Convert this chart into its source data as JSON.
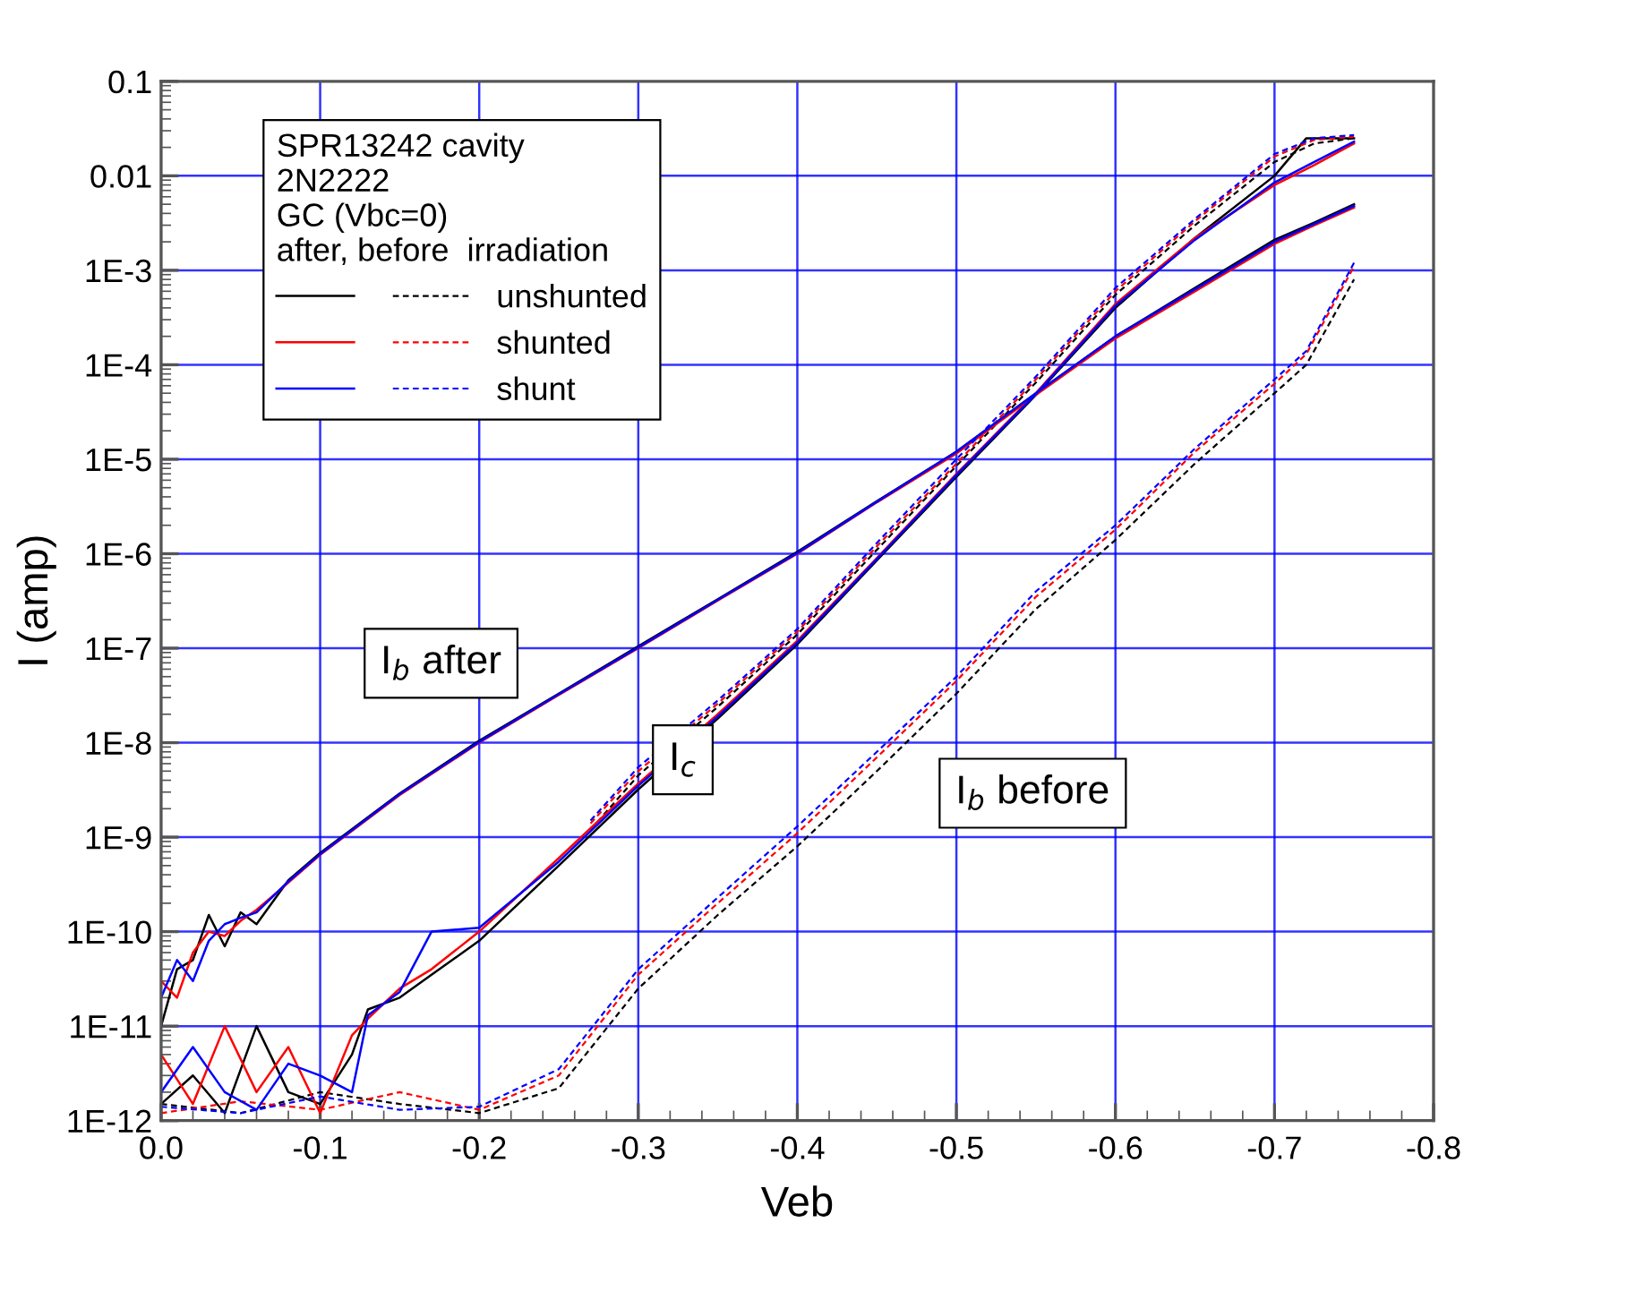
{
  "chart_data": {
    "type": "line",
    "xlabel": "Veb",
    "ylabel": "I (amp)",
    "log": "y",
    "xlim": [
      0,
      -0.8
    ],
    "ylim": [
      1e-12,
      0.1
    ],
    "xticks": [
      {
        "value": 0,
        "label": "0.0"
      },
      -0.1,
      -0.2,
      -0.3,
      -0.4,
      -0.5,
      -0.6,
      -0.7,
      -0.8
    ],
    "yticks": [
      {
        "value": 1e-12,
        "label": "1E-12"
      },
      {
        "value": 1e-11,
        "label": "1E-11"
      },
      {
        "value": 1e-10,
        "label": "1E-10"
      },
      {
        "value": 1e-09,
        "label": "1E-9"
      },
      {
        "value": 1e-08,
        "label": "1E-8"
      },
      {
        "value": 1e-07,
        "label": "1E-7"
      },
      {
        "value": 1e-06,
        "label": "1E-6"
      },
      {
        "value": 1e-05,
        "label": "1E-5"
      },
      {
        "value": 0.0001,
        "label": "1E-4"
      },
      {
        "value": 0.001,
        "label": "1E-3"
      },
      0.01,
      0.1
    ],
    "grid": true,
    "legend": "top left",
    "legend_title": "SPR13242 cavity\n2N2222\nGC (Vbc=0)\nafter, before  irradiation",
    "annotations": [
      "I$_{b}$ after",
      {
        "text": "I$_{c}$",
        "x": -0.328,
        "y": 6.6e-09
      },
      "I$_{b}$ before"
    ],
    "series": [
      {
        "name": "unshunted",
        "color": "#000000",
        "line_style": "solid",
        "x": [
          0,
          -0.01,
          -0.02,
          -0.03,
          -0.04,
          -0.05,
          -0.06,
          -0.08,
          -0.1,
          -0.15,
          -0.2,
          -0.25,
          -0.3,
          -0.35,
          -0.4,
          -0.45,
          -0.5,
          -0.55,
          -0.6,
          -0.65,
          -0.7,
          -0.725,
          -0.75
        ],
        "values": [
          1e-11,
          4e-11,
          5e-11,
          1.5e-10,
          7e-11,
          1.6e-10,
          1.2e-10,
          3.5e-10,
          6.8e-10,
          2.9e-09,
          1.05e-08,
          3.3e-08,
          1.05e-07,
          3.3e-07,
          1.05e-06,
          3.6e-06,
          1.2e-05,
          5e-05,
          0.0002,
          0.00065,
          0.0021,
          0.0032,
          0.005
        ]
      },
      {
        "color": "#000000",
        "line_style": "solid",
        "x": [
          0,
          -0.02,
          -0.04,
          -0.06,
          -0.08,
          -0.1,
          -0.12,
          -0.13,
          -0.15,
          -0.17,
          -0.2,
          -0.25,
          -0.3,
          -0.35,
          -0.4,
          -0.45,
          -0.5,
          -0.55,
          -0.6,
          -0.65,
          -0.7,
          -0.72,
          -0.75
        ],
        "values": [
          1.5e-12,
          3e-12,
          1.2e-12,
          1e-11,
          2e-12,
          1.5e-12,
          5e-12,
          1.5e-11,
          2e-11,
          3.5e-11,
          8e-11,
          5e-10,
          3.2e-09,
          1.8e-08,
          1.1e-07,
          8.5e-07,
          6.5e-06,
          4.8e-05,
          0.0004,
          0.0022,
          0.01,
          0.025,
          0.025
        ]
      },
      {
        "color": "#000000",
        "line_style": "dashed",
        "x": [
          0,
          -0.05,
          -0.1,
          -0.15,
          -0.2,
          -0.25,
          -0.3,
          -0.35,
          -0.4,
          -0.45,
          -0.5,
          -0.55,
          -0.6,
          -0.65,
          -0.7,
          -0.72,
          -0.75
        ],
        "values": [
          1.5e-12,
          1.2e-12,
          2e-12,
          1.5e-12,
          1.2e-12,
          2.2e-12,
          2.5e-11,
          1.5e-10,
          8e-10,
          5e-09,
          3.3e-08,
          2.6e-07,
          1.4e-06,
          9e-06,
          5e-05,
          0.0001,
          0.0008
        ]
      },
      {
        "color": "#000000",
        "line_style": "dashed",
        "x": [
          -0.27,
          -0.3,
          -0.35,
          -0.4,
          -0.45,
          -0.5,
          -0.55,
          -0.6,
          -0.65,
          -0.7,
          -0.725,
          -0.75
        ],
        "values": [
          1.2e-09,
          4.5e-09,
          2.4e-08,
          1.4e-07,
          1.1e-06,
          8.5e-06,
          6.5e-05,
          0.00055,
          0.003,
          0.014,
          0.022,
          0.025
        ]
      },
      {
        "name": "shunted",
        "color": "#ff0000",
        "line_style": "solid",
        "x": [
          0,
          -0.01,
          -0.02,
          -0.03,
          -0.04,
          -0.05,
          -0.06,
          -0.08,
          -0.1,
          -0.15,
          -0.2,
          -0.25,
          -0.3,
          -0.35,
          -0.4,
          -0.45,
          -0.5,
          -0.55,
          -0.6,
          -0.65,
          -0.7,
          -0.725,
          -0.75
        ],
        "values": [
          3e-11,
          2e-11,
          6e-11,
          1e-10,
          9e-11,
          1.3e-10,
          1.7e-10,
          3.3e-10,
          6.5e-10,
          2.8e-09,
          1e-08,
          3.2e-08,
          1e-07,
          3.2e-07,
          1e-06,
          3.5e-06,
          1.15e-05,
          4.8e-05,
          0.00019,
          0.0006,
          0.0019,
          0.003,
          0.0046
        ]
      },
      {
        "color": "#ff0000",
        "line_style": "solid",
        "x": [
          0,
          -0.02,
          -0.04,
          -0.06,
          -0.08,
          -0.1,
          -0.12,
          -0.13,
          -0.15,
          -0.17,
          -0.2,
          -0.25,
          -0.3,
          -0.35,
          -0.4,
          -0.45,
          -0.5,
          -0.55,
          -0.6,
          -0.65,
          -0.7,
          -0.725,
          -0.75
        ],
        "values": [
          5e-12,
          1.5e-12,
          1e-11,
          2e-12,
          6e-12,
          1.2e-12,
          8e-12,
          1.2e-11,
          2.5e-11,
          4e-11,
          1e-10,
          6e-10,
          3.7e-09,
          2e-08,
          1.2e-07,
          9e-07,
          7e-06,
          5e-05,
          0.00044,
          0.0022,
          0.008,
          0.013,
          0.022
        ]
      },
      {
        "color": "#ff0000",
        "line_style": "dashed",
        "x": [
          0,
          -0.05,
          -0.1,
          -0.15,
          -0.2,
          -0.25,
          -0.3,
          -0.35,
          -0.4,
          -0.45,
          -0.5,
          -0.55,
          -0.6,
          -0.65,
          -0.7,
          -0.72,
          -0.75
        ],
        "values": [
          1.2e-12,
          1.6e-12,
          1.3e-12,
          2e-12,
          1.3e-12,
          3e-12,
          3.5e-11,
          2e-10,
          1.1e-09,
          7e-09,
          4.5e-08,
          3.5e-07,
          1.8e-06,
          1.2e-05,
          6.3e-05,
          0.00013,
          0.0011
        ]
      },
      {
        "color": "#ff0000",
        "line_style": "dashed",
        "x": [
          -0.27,
          -0.3,
          -0.35,
          -0.4,
          -0.45,
          -0.5,
          -0.55,
          -0.6,
          -0.65,
          -0.7,
          -0.725,
          -0.75
        ],
        "values": [
          1.4e-09,
          5e-09,
          2.6e-08,
          1.5e-07,
          1.2e-06,
          9e-06,
          7e-05,
          0.0006,
          0.0033,
          0.016,
          0.024,
          0.026
        ]
      },
      {
        "name": "shunt",
        "color": "#0000ff",
        "line_style": "solid",
        "x": [
          0,
          -0.01,
          -0.02,
          -0.03,
          -0.04,
          -0.05,
          -0.06,
          -0.08,
          -0.1,
          -0.15,
          -0.2,
          -0.25,
          -0.3,
          -0.35,
          -0.4,
          -0.45,
          -0.5,
          -0.55,
          -0.6,
          -0.65,
          -0.7,
          -0.725,
          -0.75
        ],
        "values": [
          2e-11,
          5e-11,
          3e-11,
          8e-11,
          1.2e-10,
          1.4e-10,
          1.6e-10,
          3.4e-10,
          6.6e-10,
          2.85e-09,
          1.02e-08,
          3.25e-08,
          1.02e-07,
          3.25e-07,
          1.02e-06,
          3.55e-06,
          1.2e-05,
          5e-05,
          0.0002,
          0.00063,
          0.002,
          0.0031,
          0.0048
        ]
      },
      {
        "color": "#0000ff",
        "line_style": "solid",
        "x": [
          0,
          -0.02,
          -0.04,
          -0.06,
          -0.08,
          -0.1,
          -0.12,
          -0.13,
          -0.15,
          -0.17,
          -0.2,
          -0.25,
          -0.3,
          -0.35,
          -0.4,
          -0.45,
          -0.5,
          -0.55,
          -0.6,
          -0.65,
          -0.7,
          -0.725,
          -0.75
        ],
        "values": [
          2e-12,
          6e-12,
          2e-12,
          1.3e-12,
          4e-12,
          3e-12,
          2e-12,
          1.3e-11,
          2.3e-11,
          1e-10,
          1.1e-10,
          5.5e-10,
          3.5e-09,
          1.9e-08,
          1.15e-07,
          8.8e-07,
          6.8e-06,
          4.9e-05,
          0.00042,
          0.0021,
          0.0085,
          0.014,
          0.023
        ]
      },
      {
        "color": "#0000ff",
        "line_style": "dashed",
        "x": [
          0,
          -0.05,
          -0.1,
          -0.15,
          -0.2,
          -0.25,
          -0.3,
          -0.35,
          -0.4,
          -0.45,
          -0.5,
          -0.55,
          -0.6,
          -0.65,
          -0.7,
          -0.72,
          -0.75
        ],
        "values": [
          1.4e-12,
          1.2e-12,
          1.8e-12,
          1.3e-12,
          1.4e-12,
          3.5e-12,
          4e-11,
          2.3e-10,
          1.3e-09,
          8e-09,
          5e-08,
          4e-07,
          2e-06,
          1.3e-05,
          7e-05,
          0.00014,
          0.0012
        ]
      },
      {
        "color": "#0000ff",
        "line_style": "dashed",
        "x": [
          -0.27,
          -0.3,
          -0.35,
          -0.4,
          -0.45,
          -0.5,
          -0.55,
          -0.6,
          -0.65,
          -0.7,
          -0.725,
          -0.75
        ],
        "values": [
          1.5e-09,
          5.5e-09,
          2.8e-08,
          1.6e-07,
          1.3e-06,
          1e-05,
          7.5e-05,
          0.00065,
          0.0035,
          0.017,
          0.025,
          0.027
        ]
      }
    ]
  }
}
